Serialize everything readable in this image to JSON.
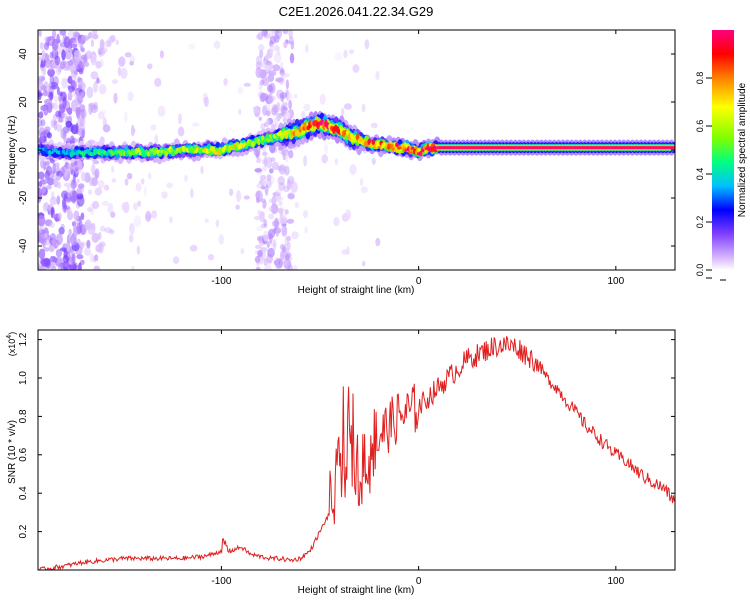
{
  "title": "C2E1.2026.041.22.34.G29",
  "chart_data": [
    {
      "type": "heatmap",
      "xlabel": "Height of straight line (km)",
      "ylabel": "Frequency (Hz)",
      "xlim": [
        -193,
        130
      ],
      "ylim": [
        -50,
        50
      ],
      "x_ticks": [
        -100,
        0,
        100
      ],
      "x_tick_labels": [
        "-100",
        "0",
        "100"
      ],
      "y_ticks": [
        -40,
        -20,
        0,
        20,
        40
      ],
      "y_tick_labels": [
        "-40",
        "-20",
        "0",
        "20",
        "40"
      ],
      "colorbar": {
        "label": "Normalized spectral amplitude",
        "range": [
          0,
          1
        ],
        "ticks": [
          0.0,
          0.2,
          0.4,
          0.6,
          0.8
        ],
        "tick_labels": [
          "0.0",
          "0.2",
          "0.4",
          "0.6",
          "0.8"
        ],
        "colors": [
          "#ffffff",
          "#d9b8ff",
          "#8040ff",
          "#0000ff",
          "#00c0ff",
          "#00ff80",
          "#80ff00",
          "#ffff00",
          "#ff8000",
          "#ff0000",
          "#ff0080"
        ]
      },
      "ridge": {
        "x": [
          -193,
          -180,
          -170,
          -160,
          -150,
          -140,
          -130,
          -120,
          -110,
          -100,
          -95,
          -90,
          -85,
          -80,
          -75,
          -70,
          -65,
          -60,
          -55,
          -50,
          -45,
          -40,
          -35,
          -30,
          -25,
          -20,
          -15,
          -10,
          -5,
          0,
          5,
          10,
          20,
          40,
          60,
          80,
          100,
          130
        ],
        "y": [
          0,
          -1,
          -1,
          -1,
          -1,
          -1,
          -1,
          0,
          0,
          0,
          1,
          2,
          3,
          4,
          5,
          6,
          7,
          8,
          10,
          11,
          10,
          8,
          6,
          4,
          3,
          2,
          2,
          1,
          1,
          -1,
          1,
          1,
          1,
          1,
          1,
          1,
          1,
          1
        ],
        "amplitude": [
          0.3,
          0.35,
          0.4,
          0.45,
          0.5,
          0.55,
          0.55,
          0.6,
          0.6,
          0.65,
          0.65,
          0.6,
          0.6,
          0.55,
          0.55,
          0.6,
          0.7,
          0.8,
          0.85,
          0.9,
          0.85,
          0.8,
          0.75,
          0.75,
          0.8,
          0.8,
          0.85,
          0.9,
          0.9,
          0.95,
          0.95,
          1.0,
          1.0,
          1.0,
          1.0,
          1.0,
          1.0,
          1.0
        ]
      }
    },
    {
      "type": "line",
      "xlabel": "Height of straight line (km)",
      "ylabel": "SNR (10 * v/v)",
      "y_scale_label": "(x10",
      "y_scale_exponent": "4",
      "y_scale_close": ")",
      "xlim": [
        -193,
        130
      ],
      "ylim": [
        0,
        1.25
      ],
      "x_ticks": [
        -100,
        0,
        100
      ],
      "x_tick_labels": [
        "-100",
        "0",
        "100"
      ],
      "y_ticks": [
        0.2,
        0.4,
        0.6,
        0.8,
        1.0,
        1.2
      ],
      "y_tick_labels": [
        "0.2",
        "0.4",
        "0.6",
        "0.8",
        "1.0",
        "1.2"
      ],
      "series": [
        {
          "name": "SNR",
          "color": "#e02020",
          "x": [
            -193,
            -180,
            -170,
            -160,
            -150,
            -140,
            -130,
            -120,
            -110,
            -105,
            -100,
            -95,
            -90,
            -85,
            -80,
            -75,
            -70,
            -65,
            -60,
            -55,
            -50,
            -45,
            -40,
            -37,
            -35,
            -32,
            -30,
            -25,
            -20,
            -15,
            -10,
            -5,
            0,
            5,
            10,
            15,
            20,
            25,
            30,
            35,
            40,
            45,
            50,
            55,
            60,
            65,
            70,
            75,
            80,
            85,
            90,
            95,
            100,
            105,
            110,
            115,
            120,
            125,
            130
          ],
          "y": [
            0.0,
            0.02,
            0.04,
            0.05,
            0.06,
            0.06,
            0.06,
            0.06,
            0.07,
            0.08,
            0.1,
            0.1,
            0.12,
            0.08,
            0.07,
            0.06,
            0.06,
            0.05,
            0.06,
            0.1,
            0.2,
            0.3,
            0.5,
            0.6,
            0.6,
            0.55,
            0.55,
            0.6,
            0.7,
            0.75,
            0.8,
            0.82,
            0.85,
            0.9,
            0.95,
            1.0,
            1.05,
            1.1,
            1.12,
            1.15,
            1.17,
            1.17,
            1.16,
            1.12,
            1.08,
            1.0,
            0.95,
            0.88,
            0.82,
            0.75,
            0.7,
            0.65,
            0.6,
            0.57,
            0.52,
            0.48,
            0.45,
            0.42,
            0.35
          ]
        }
      ]
    }
  ]
}
